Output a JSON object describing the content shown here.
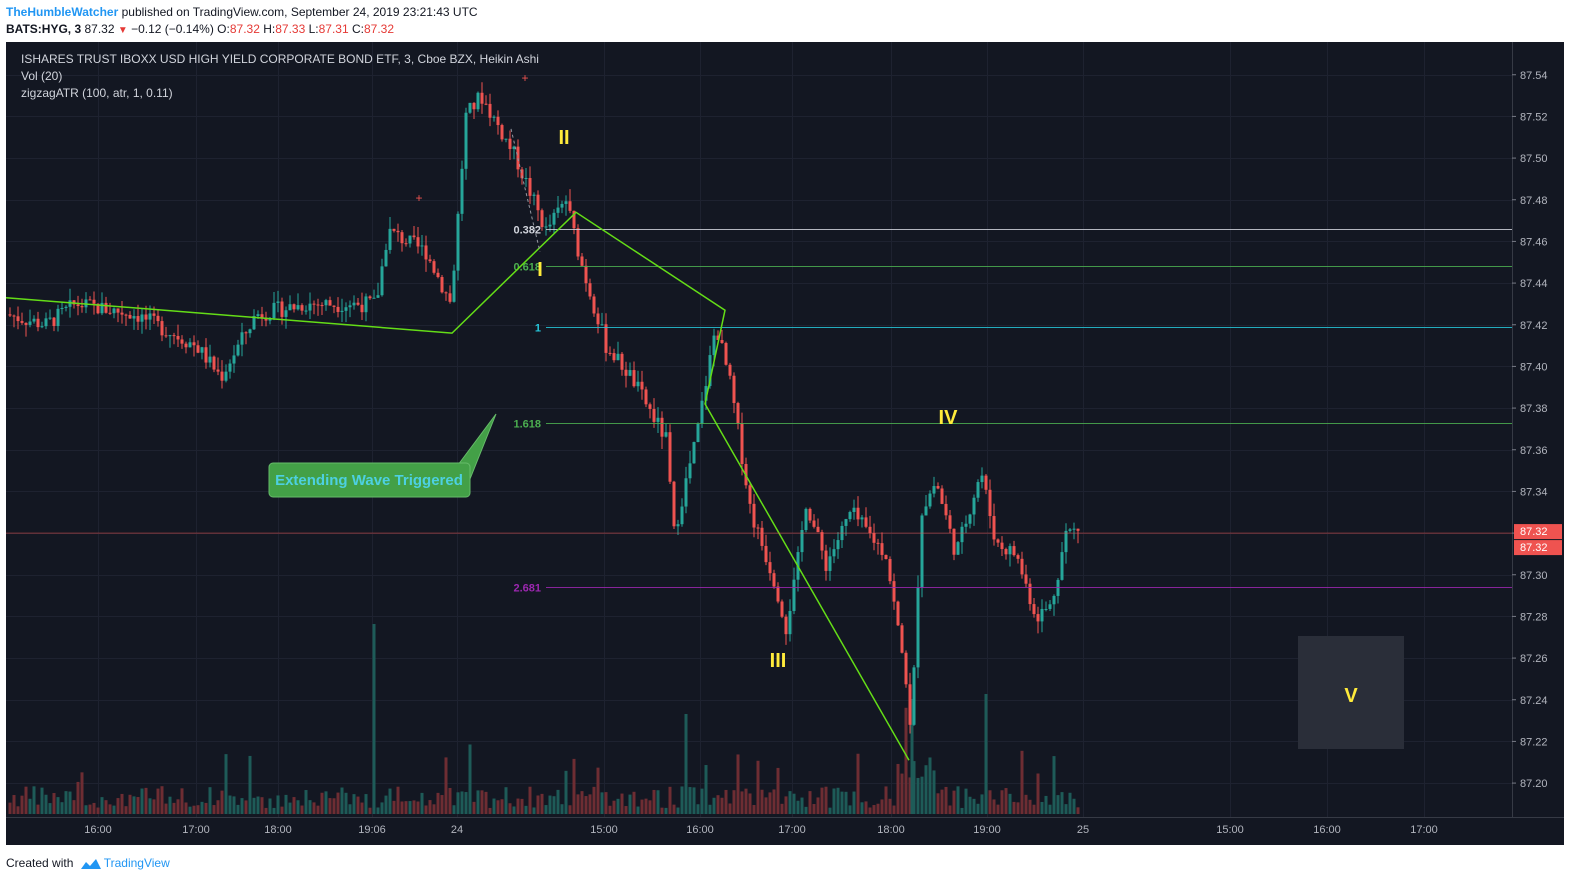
{
  "header": {
    "author": "TheHumbleWatcher",
    "published": "published on TradingView.com, September 24, 2019 23:21:43 UTC",
    "symbol": "BATS:HYG, 3",
    "last": "87.32",
    "change": "−0.12 (−0.14%)",
    "o_label": "O:",
    "o_value": "87.32",
    "h_label": "H:",
    "h_value": "87.33",
    "l_label": "L:",
    "l_value": "87.31",
    "c_label": "C:",
    "c_value": "87.32"
  },
  "legend": {
    "title": "ISHARES TRUST IBOXX USD HIGH YIELD CORPORATE BOND ETF, 3, Cboe BZX, Heikin Ashi",
    "vol": "Vol (20)",
    "zigzag": "zigzagATR (100, atr, 1, 0.11)"
  },
  "footer": {
    "created": "Created with",
    "brand": "TradingView"
  },
  "colors": {
    "background": "#131722",
    "up": "#26a69a",
    "down": "#ef5350",
    "zigzag": "#64dd17",
    "fib_0382": "#d1d4dc",
    "fib_0618": "#4caf50",
    "fib_1": "#26c6da",
    "fib_1618": "#4caf50",
    "fib_2681": "#9c27b0",
    "wave_labels": "#ffeb3b",
    "price_tag": "#ef5350"
  },
  "chart_data": {
    "type": "candlestick",
    "price_axis": [
      "87.54",
      "87.52",
      "87.50",
      "87.48",
      "87.46",
      "87.44",
      "87.42",
      "87.40",
      "87.38",
      "87.36",
      "87.34",
      "87.32",
      "87.30",
      "87.28",
      "87.26",
      "87.24",
      "87.22",
      "87.20"
    ],
    "ylim": [
      87.189,
      87.549
    ],
    "time_axis": [
      "16:00",
      "17:00",
      "18:00",
      "19:06",
      "24",
      "15:00",
      "16:00",
      "17:00",
      "18:00",
      "19:00",
      "25",
      "15:00",
      "16:00",
      "17:00"
    ],
    "current_price": "87.32",
    "price_tags": [
      "87.32",
      "87.32"
    ],
    "fib_levels": [
      {
        "label": "0.382",
        "price": 87.466
      },
      {
        "label": "0.618",
        "price": 87.448
      },
      {
        "label": "1",
        "price": 87.419
      },
      {
        "label": "1.618",
        "price": 87.373
      },
      {
        "label": "2.681",
        "price": 87.294
      }
    ],
    "zigzag": [
      87.433,
      87.416,
      87.474,
      87.427,
      87.382,
      87.211
    ],
    "wave_labels": [
      "I",
      "II",
      "III",
      "IV",
      "V"
    ],
    "annotation": "Extending Wave Triggered"
  }
}
